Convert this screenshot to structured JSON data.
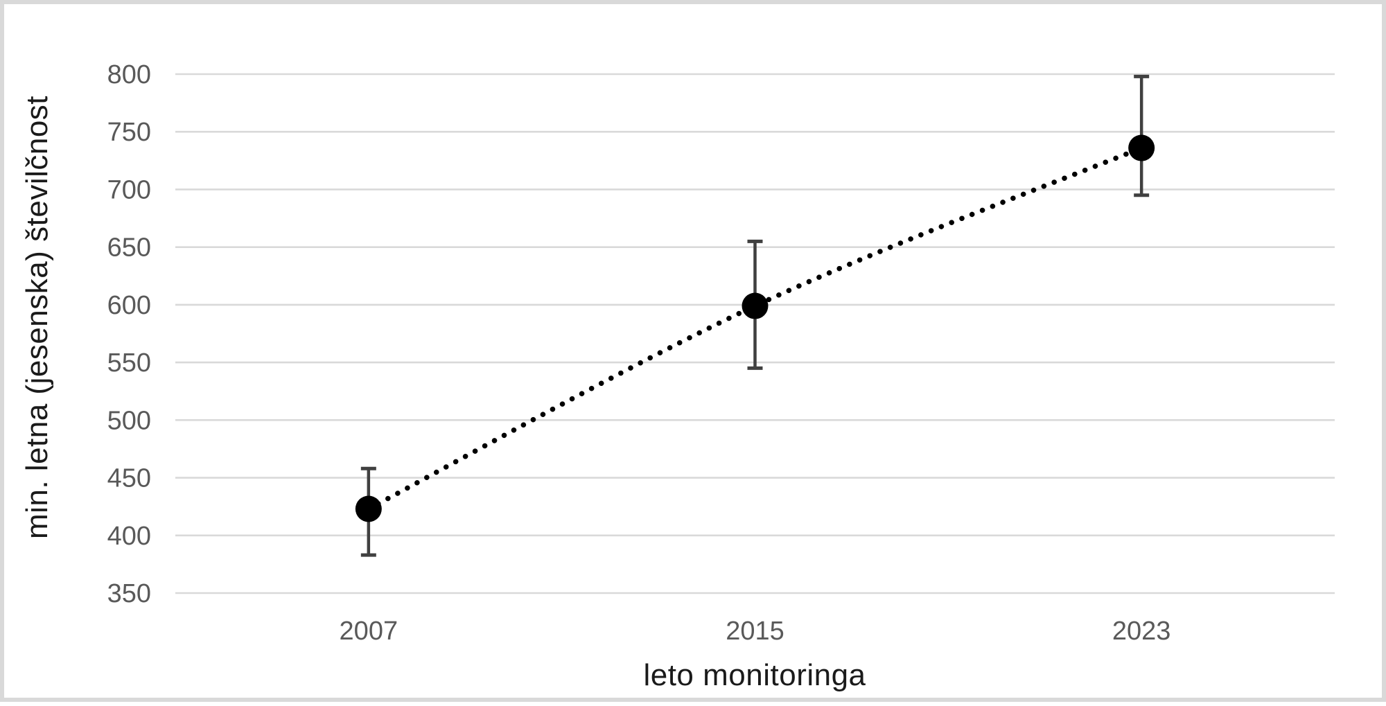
{
  "figure": {
    "background_color": "#ffffff",
    "border_color": "#d9d9d9"
  },
  "chart_data": {
    "type": "scatter",
    "title": "",
    "xlabel": "leto monitoringa",
    "ylabel": "min. letna (jesenska) številčnost",
    "categories": [
      "2007",
      "2015",
      "2023"
    ],
    "series": [
      {
        "values": [
          423,
          599,
          736
        ],
        "error_low": [
          383,
          545,
          695
        ],
        "error_high": [
          458,
          655,
          798
        ]
      }
    ],
    "ylim": [
      350,
      800
    ],
    "ytick_step": 50,
    "yticks": [
      350,
      400,
      450,
      500,
      550,
      600,
      650,
      700,
      750,
      800
    ],
    "grid": "horizontal",
    "legend": "none",
    "line_style": "dotted",
    "line_color": "#000000",
    "marker_color": "#000000",
    "errorbar_color": "#404040",
    "gridline_color": "#d9d9d9",
    "tick_label_color": "#595959",
    "axis_title_color": "#1a1a1a"
  }
}
